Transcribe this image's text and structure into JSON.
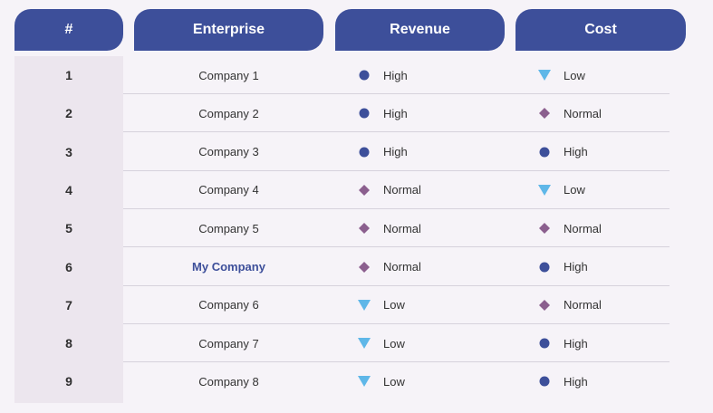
{
  "header": {
    "num": "#",
    "enterprise": "Enterprise",
    "revenue": "Revenue",
    "cost": "Cost"
  },
  "legend_icons": {
    "High": "circle-icon",
    "Normal": "diamond-icon",
    "Low": "triangle-down-icon"
  },
  "colors": {
    "header_bg": "#3d4f9a",
    "high": "#3d4f9a",
    "normal": "#8b5f8e",
    "low": "#5fb7e8",
    "highlight_text": "#3d4f9a"
  },
  "rows": [
    {
      "num": "1",
      "enterprise": "Company 1",
      "revenue": "High",
      "cost": "Low",
      "highlight": false
    },
    {
      "num": "2",
      "enterprise": "Company 2",
      "revenue": "High",
      "cost": "Normal",
      "highlight": false
    },
    {
      "num": "3",
      "enterprise": "Company 3",
      "revenue": "High",
      "cost": "High",
      "highlight": false
    },
    {
      "num": "4",
      "enterprise": "Company 4",
      "revenue": "Normal",
      "cost": "Low",
      "highlight": false
    },
    {
      "num": "5",
      "enterprise": "Company 5",
      "revenue": "Normal",
      "cost": "Normal",
      "highlight": false
    },
    {
      "num": "6",
      "enterprise": "My Company",
      "revenue": "Normal",
      "cost": "High",
      "highlight": true
    },
    {
      "num": "7",
      "enterprise": "Company 6",
      "revenue": "Low",
      "cost": "Normal",
      "highlight": false
    },
    {
      "num": "8",
      "enterprise": "Company 7",
      "revenue": "Low",
      "cost": "High",
      "highlight": false
    },
    {
      "num": "9",
      "enterprise": "Company 8",
      "revenue": "Low",
      "cost": "High",
      "highlight": false
    }
  ]
}
